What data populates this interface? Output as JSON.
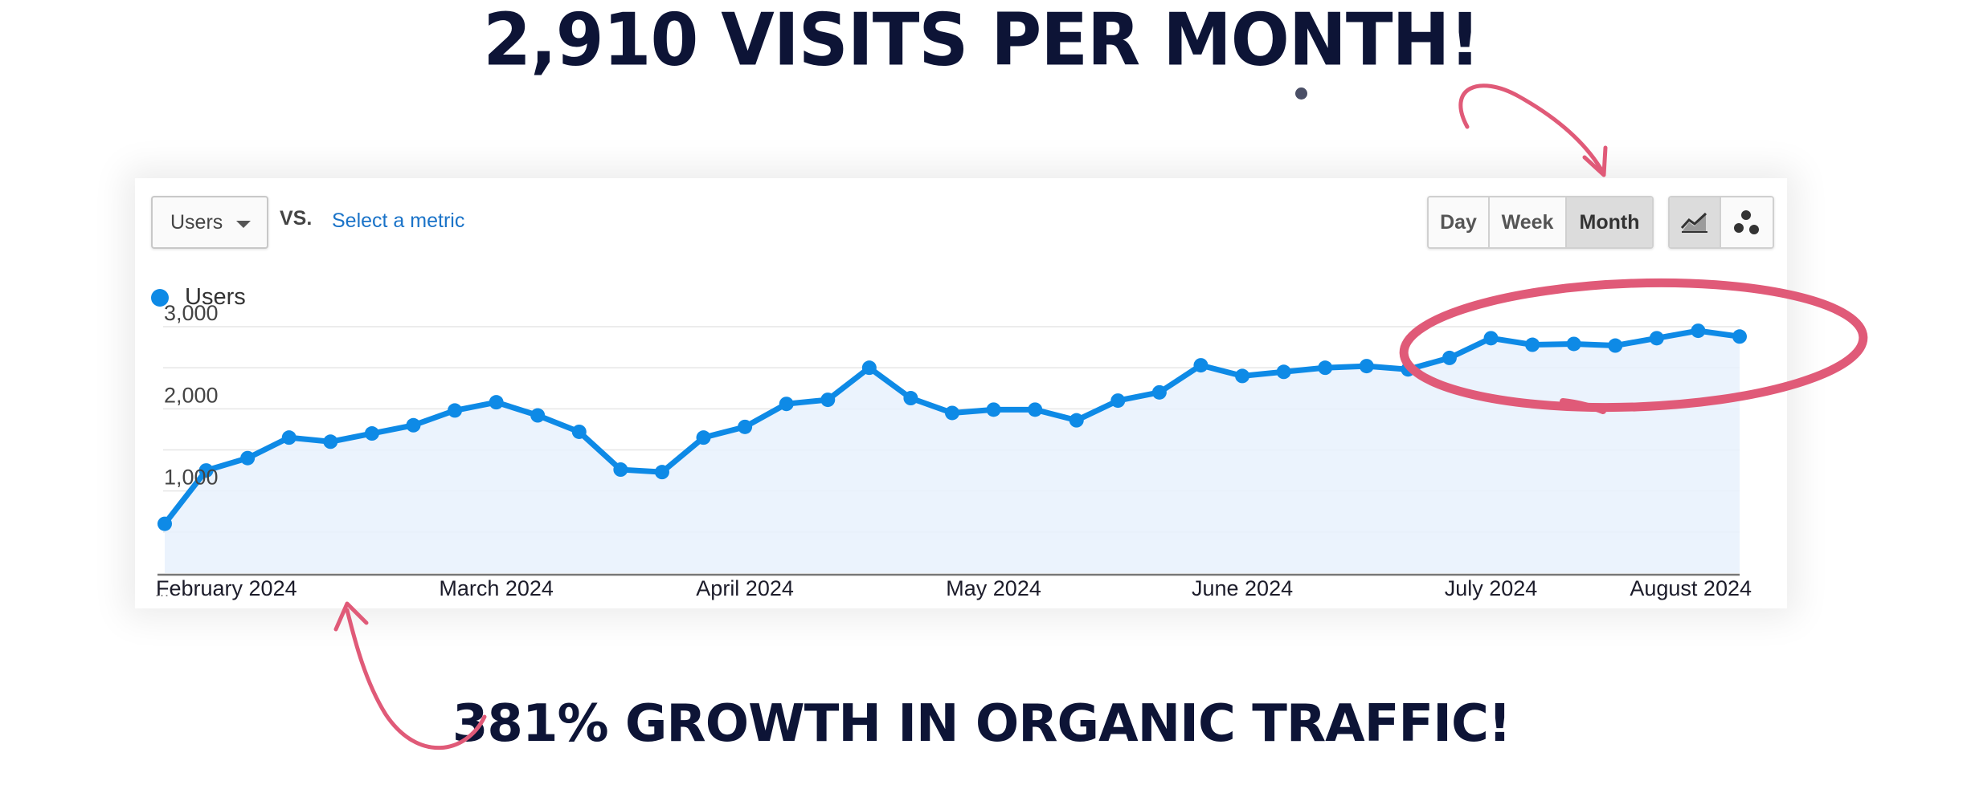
{
  "headline_top": "2,910 VISITS PER MONTH!",
  "headline_bottom": "381% GROWTH IN ORGANIC TRAFFIC!",
  "toolbar": {
    "metric_select_value": "Users",
    "vs_label": "VS.",
    "select_metric_link": "Select a metric",
    "period_buttons": [
      "Day",
      "Week",
      "Month"
    ],
    "active_period": "Month"
  },
  "colors": {
    "headline": "#0d1436",
    "line": "#0e8ae6",
    "area": "#e8f1fd",
    "annotation": "#e05a78",
    "link": "#1a73c8"
  },
  "chart_data": {
    "type": "area",
    "title": "",
    "legend": [
      "Users"
    ],
    "legend_position": "top-left",
    "ylim": [
      0,
      3000
    ],
    "yticks": [
      {
        "value": 1000,
        "label": "1,000"
      },
      {
        "value": 2000,
        "label": "2,000"
      },
      {
        "value": 3000,
        "label": "3,000"
      }
    ],
    "x_tick_labels": [
      {
        "index": 2,
        "label": "February 2024"
      },
      {
        "index": 8,
        "label": "March 2024"
      },
      {
        "index": 14,
        "label": "April 2024"
      },
      {
        "index": 20,
        "label": "May 2024"
      },
      {
        "index": 26,
        "label": "June 2024"
      },
      {
        "index": 32,
        "label": "July 2024"
      },
      {
        "index": 37,
        "label": "August 2024"
      }
    ],
    "series": [
      {
        "name": "Users",
        "values": [
          600,
          1250,
          1400,
          1650,
          1600,
          1700,
          1800,
          1980,
          2080,
          1920,
          1720,
          1260,
          1230,
          1650,
          1780,
          2060,
          2110,
          2500,
          2130,
          1950,
          1990,
          1990,
          1860,
          2100,
          2200,
          2530,
          2400,
          2450,
          2500,
          2520,
          2480,
          2620,
          2860,
          2780,
          2790,
          2770,
          2860,
          2950,
          2880
        ]
      }
    ]
  }
}
